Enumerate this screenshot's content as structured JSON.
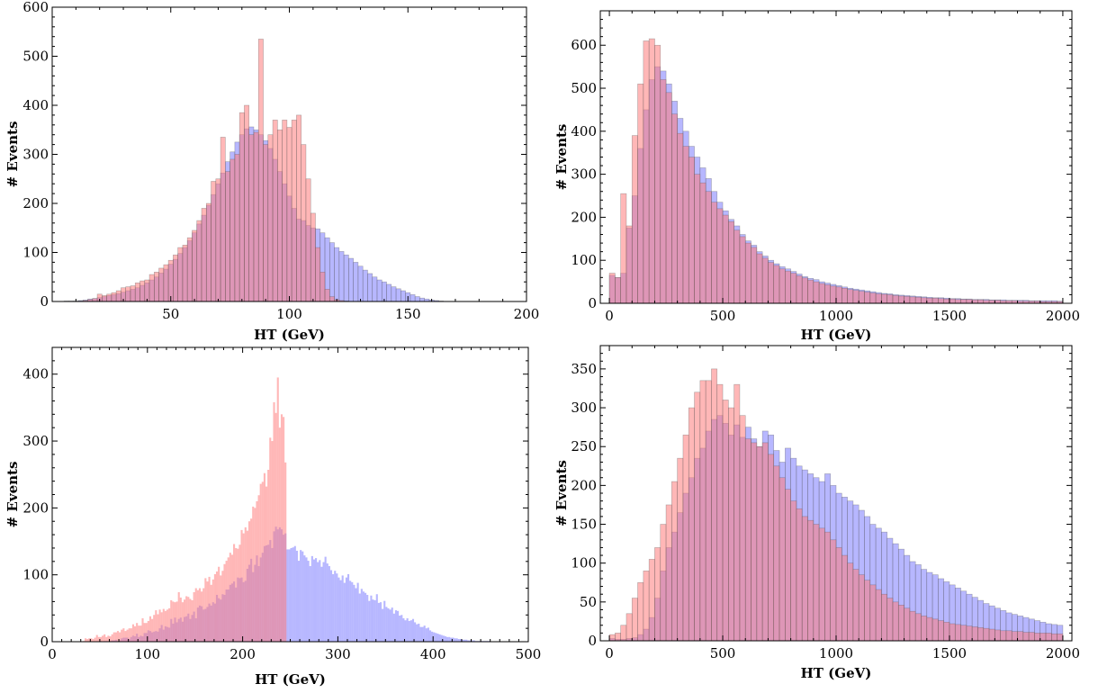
{
  "chart_data": [
    {
      "id": "p1",
      "type": "histogram",
      "xlabel": "HT (GeV)",
      "ylabel": "# Events",
      "xlim": [
        0,
        200
      ],
      "ylim": [
        0,
        600
      ],
      "xticks": [
        50,
        100,
        150,
        200
      ],
      "yticks": [
        0,
        100,
        200,
        300,
        400,
        500,
        600
      ],
      "series": [
        {
          "name": "blue",
          "color": "#7b7bff",
          "bin_start": 5,
          "bin_width": 2,
          "values": [
            1,
            1,
            1,
            2,
            3,
            5,
            6,
            8,
            10,
            12,
            14,
            16,
            19,
            22,
            25,
            28,
            33,
            38,
            44,
            50,
            58,
            66,
            76,
            86,
            98,
            110,
            124,
            140,
            158,
            176,
            196,
            218,
            240,
            262,
            285,
            305,
            325,
            340,
            352,
            356,
            350,
            340,
            328,
            312,
            290,
            265,
            240,
            215,
            190,
            168,
            165,
            155,
            150,
            148,
            140,
            130,
            120,
            110,
            102,
            95,
            88,
            80,
            72,
            64,
            57,
            50,
            44,
            40,
            35,
            30,
            26,
            22,
            18,
            14,
            10,
            7,
            5,
            3,
            2,
            1
          ]
        },
        {
          "name": "red",
          "color": "#ff7b7b",
          "bin_start": 5,
          "bin_width": 2,
          "values": [
            0,
            0,
            0,
            1,
            2,
            4,
            6,
            15,
            12,
            15,
            18,
            22,
            28,
            30,
            32,
            38,
            42,
            44,
            55,
            60,
            68,
            75,
            84,
            95,
            110,
            115,
            130,
            145,
            165,
            190,
            200,
            245,
            250,
            335,
            265,
            290,
            300,
            385,
            400,
            340,
            345,
            535,
            320,
            340,
            370,
            350,
            370,
            355,
            370,
            380,
            320,
            250,
            180,
            110,
            60,
            25,
            10,
            4,
            2,
            1,
            0,
            0,
            0,
            0,
            0,
            0,
            0,
            0,
            0,
            0,
            0,
            0,
            0,
            0,
            0,
            0,
            0,
            0,
            0,
            0
          ]
        }
      ]
    },
    {
      "id": "p2",
      "type": "histogram",
      "xlabel": "HT (GeV)",
      "ylabel": "# Events",
      "xlim": [
        -40,
        2040
      ],
      "ylim": [
        0,
        680
      ],
      "xticks": [
        0,
        500,
        1000,
        1500,
        2000
      ],
      "yticks": [
        0,
        100,
        200,
        300,
        400,
        500,
        600
      ],
      "series": [
        {
          "name": "blue",
          "color": "#7b7bff",
          "bin_start": 0,
          "bin_width": 25,
          "values": [
            65,
            60,
            70,
            175,
            250,
            360,
            450,
            520,
            550,
            540,
            510,
            470,
            430,
            400,
            365,
            340,
            315,
            290,
            260,
            235,
            215,
            195,
            180,
            160,
            145,
            135,
            120,
            110,
            100,
            92,
            85,
            80,
            74,
            68,
            62,
            58,
            55,
            50,
            47,
            44,
            41,
            38,
            35,
            33,
            31,
            29,
            27,
            25,
            23,
            22,
            20,
            19,
            18,
            17,
            16,
            15,
            14,
            13,
            13,
            12,
            11,
            11,
            10,
            10,
            9,
            9,
            9,
            8,
            8,
            8,
            7,
            7,
            7,
            7,
            6,
            6,
            6,
            6,
            6,
            5
          ]
        },
        {
          "name": "red",
          "color": "#ff7b7b",
          "bin_start": 0,
          "bin_width": 25,
          "values": [
            70,
            60,
            255,
            180,
            390,
            510,
            610,
            615,
            600,
            520,
            490,
            440,
            395,
            365,
            340,
            300,
            280,
            260,
            235,
            220,
            205,
            190,
            170,
            155,
            140,
            130,
            115,
            105,
            95,
            88,
            80,
            75,
            70,
            64,
            59,
            54,
            50,
            46,
            43,
            40,
            38,
            35,
            32,
            30,
            28,
            26,
            24,
            22,
            21,
            20,
            18,
            17,
            16,
            15,
            14,
            13,
            12,
            12,
            11,
            10,
            10,
            9,
            9,
            9,
            8,
            8,
            7,
            7,
            7,
            6,
            6,
            6,
            5,
            5,
            5,
            5,
            4,
            4,
            4,
            4
          ]
        }
      ]
    },
    {
      "id": "p3",
      "type": "histogram",
      "xlabel": "HT (GeV)",
      "ylabel": "# Events",
      "xlim": [
        0,
        500
      ],
      "ylim": [
        0,
        440
      ],
      "xticks": [
        0,
        100,
        200,
        300,
        400,
        500
      ],
      "yticks": [
        0,
        100,
        200,
        300,
        400
      ],
      "series": [
        {
          "name": "blue",
          "color": "#7b7bff",
          "bin_start": 0,
          "bin_width": 2,
          "values": [
            0,
            0,
            0,
            0,
            0,
            0,
            0,
            0,
            0,
            0,
            0,
            0,
            0,
            0,
            0,
            0,
            0,
            0,
            0,
            0,
            0,
            0,
            0,
            0,
            0,
            1,
            0,
            1,
            1,
            0,
            1,
            2,
            2,
            3,
            1,
            2,
            5,
            6,
            6,
            6,
            4,
            7,
            9,
            8,
            12,
            7,
            9,
            8,
            13,
            13,
            17,
            16,
            14,
            15,
            16,
            15,
            20,
            25,
            18,
            23,
            22,
            21,
            34,
            27,
            36,
            29,
            34,
            36,
            30,
            37,
            38,
            42,
            34,
            40,
            45,
            35,
            51,
            54,
            53,
            48,
            49,
            52,
            57,
            54,
            59,
            57,
            70,
            65,
            63,
            71,
            70,
            78,
            78,
            85,
            87,
            90,
            81,
            96,
            95,
            96,
            89,
            91,
            109,
            115,
            124,
            104,
            115,
            129,
            113,
            126,
            133,
            143,
            144,
            145,
            152,
            140,
            165,
            172,
            168,
            171,
            168,
            160,
            162,
            138,
            138,
            140,
            141,
            143,
            136,
            121,
            137,
            135,
            129,
            126,
            121,
            113,
            128,
            123,
            125,
            119,
            122,
            112,
            119,
            127,
            117,
            113,
            107,
            101,
            106,
            102,
            96,
            92,
            99,
            88,
            96,
            101,
            91,
            89,
            85,
            80,
            88,
            72,
            79,
            75,
            73,
            70,
            61,
            69,
            63,
            62,
            71,
            58,
            59,
            49,
            61,
            52,
            50,
            48,
            51,
            42,
            47,
            46,
            39,
            40,
            35,
            32,
            35,
            31,
            32,
            34,
            29,
            26,
            27,
            22,
            22,
            24,
            20,
            21,
            17,
            15,
            14,
            13,
            12,
            11,
            10,
            9,
            8,
            7,
            7,
            6,
            6,
            5,
            5,
            4,
            4,
            3,
            3,
            3,
            2,
            2,
            2,
            2,
            1,
            1,
            1,
            1,
            1,
            1,
            1,
            1,
            0,
            0,
            0,
            0,
            0,
            0,
            0,
            0,
            0,
            0,
            0,
            0,
            0,
            0,
            0,
            0,
            0,
            0,
            0,
            0,
            0,
            0
          ]
        },
        {
          "name": "red",
          "color": "#ff7b7b",
          "bin_start": 0,
          "bin_width": 2,
          "values": [
            0,
            0,
            0,
            0,
            0,
            0,
            0,
            0,
            0,
            0,
            0,
            0,
            0,
            0,
            0,
            0,
            1,
            5,
            4,
            5,
            5,
            4,
            6,
            10,
            7,
            7,
            9,
            11,
            7,
            9,
            8,
            11,
            14,
            14,
            16,
            14,
            18,
            20,
            16,
            18,
            20,
            20,
            26,
            23,
            28,
            24,
            24,
            35,
            28,
            28,
            31,
            38,
            34,
            40,
            47,
            41,
            48,
            44,
            49,
            46,
            48,
            50,
            62,
            60,
            59,
            60,
            74,
            66,
            59,
            63,
            68,
            67,
            64,
            62,
            74,
            80,
            77,
            80,
            75,
            80,
            95,
            90,
            97,
            85,
            93,
            101,
            105,
            112,
            99,
            106,
            116,
            121,
            126,
            133,
            130,
            146,
            140,
            139,
            145,
            167,
            162,
            171,
            166,
            180,
            184,
            202,
            200,
            210,
            219,
            236,
            239,
            252,
            232,
            257,
            305,
            300,
            358,
            342,
            395,
            320,
            340,
            336,
            268,
            0,
            0,
            0,
            0,
            0,
            0,
            0,
            0,
            0,
            0,
            0,
            0,
            0,
            0,
            0,
            0,
            0,
            0,
            0,
            0,
            0,
            0,
            0,
            0,
            0,
            0,
            0,
            0,
            0,
            0,
            0,
            0,
            0,
            0,
            0,
            0,
            0,
            0,
            0,
            0,
            0,
            0,
            0,
            0,
            0,
            0,
            0,
            0,
            0,
            0,
            0,
            0,
            0,
            0,
            0,
            0,
            0,
            0,
            0,
            0,
            0,
            0,
            0,
            0,
            0,
            0,
            0,
            0,
            0,
            0,
            0,
            0,
            0,
            0,
            0,
            0,
            0,
            0,
            0,
            0,
            0,
            0,
            0,
            0,
            0,
            0,
            0,
            0,
            0,
            0,
            0,
            0,
            0,
            0,
            0,
            0,
            0,
            0,
            0,
            0,
            0,
            0,
            0,
            0,
            0,
            0,
            0,
            0,
            0,
            0,
            0,
            0,
            0,
            0,
            0,
            0,
            0
          ]
        }
      ]
    },
    {
      "id": "p4",
      "type": "histogram",
      "xlabel": "HT (GeV)",
      "ylabel": "# Events",
      "xlim": [
        -40,
        2040
      ],
      "ylim": [
        0,
        380
      ],
      "xticks": [
        0,
        500,
        1000,
        1500,
        2000
      ],
      "yticks": [
        0,
        50,
        100,
        150,
        200,
        250,
        300,
        350
      ],
      "series": [
        {
          "name": "blue",
          "color": "#7b7bff",
          "bin_start": 0,
          "bin_width": 25,
          "values": [
            3,
            2,
            2,
            3,
            4,
            8,
            15,
            30,
            55,
            90,
            120,
            140,
            165,
            190,
            210,
            235,
            248,
            270,
            285,
            290,
            280,
            265,
            278,
            262,
            275,
            260,
            250,
            270,
            265,
            245,
            230,
            248,
            235,
            225,
            220,
            215,
            210,
            205,
            215,
            200,
            190,
            185,
            180,
            175,
            168,
            160,
            150,
            145,
            140,
            132,
            125,
            118,
            110,
            102,
            98,
            92,
            88,
            85,
            80,
            76,
            72,
            68,
            64,
            60,
            56,
            52,
            48,
            45,
            42,
            39,
            36,
            34,
            32,
            30,
            28,
            26,
            24,
            22,
            21,
            20
          ]
        },
        {
          "name": "red",
          "color": "#ff7b7b",
          "bin_start": 0,
          "bin_width": 25,
          "values": [
            8,
            10,
            20,
            35,
            55,
            75,
            90,
            105,
            120,
            150,
            175,
            205,
            235,
            265,
            300,
            320,
            335,
            335,
            350,
            330,
            310,
            300,
            330,
            290,
            260,
            255,
            250,
            255,
            240,
            225,
            210,
            195,
            180,
            170,
            160,
            155,
            150,
            145,
            140,
            130,
            120,
            110,
            100,
            92,
            85,
            78,
            72,
            66,
            60,
            55,
            50,
            46,
            42,
            38,
            35,
            32,
            30,
            28,
            26,
            24,
            22,
            21,
            20,
            19,
            18,
            17,
            16,
            15,
            14,
            13,
            13,
            12,
            12,
            11,
            11,
            10,
            10,
            10,
            9,
            9
          ]
        }
      ]
    }
  ]
}
